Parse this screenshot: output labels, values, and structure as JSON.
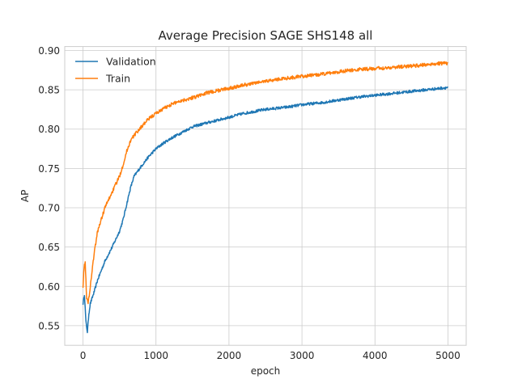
{
  "chart_data": {
    "type": "line",
    "title": "Average Precision SAGE SHS148 all",
    "xlabel": "epoch",
    "ylabel": "AP",
    "xlim": [
      -250,
      5250
    ],
    "ylim": [
      0.525,
      0.905
    ],
    "xticks": [
      0,
      1000,
      2000,
      3000,
      4000,
      5000
    ],
    "yticks": [
      0.55,
      0.6,
      0.65,
      0.7,
      0.75,
      0.8,
      0.85,
      0.9
    ],
    "xtick_labels": [
      "0",
      "1000",
      "2000",
      "3000",
      "4000",
      "5000"
    ],
    "ytick_labels": [
      "0.55",
      "0.60",
      "0.65",
      "0.70",
      "0.75",
      "0.80",
      "0.85",
      "0.90"
    ],
    "grid": true,
    "legend_position": "top-left",
    "series": [
      {
        "name": "Validation",
        "color": "#1f77b4",
        "x": [
          0,
          20,
          40,
          60,
          80,
          100,
          150,
          200,
          250,
          300,
          400,
          500,
          550,
          600,
          650,
          700,
          800,
          900,
          1000,
          1100,
          1200,
          1300,
          1400,
          1500,
          1700,
          2000,
          2200,
          2500,
          2800,
          3000,
          3300,
          3500,
          3800,
          4000,
          4300,
          4600,
          4800,
          5000
        ],
        "y": [
          0.578,
          0.59,
          0.555,
          0.542,
          0.565,
          0.578,
          0.592,
          0.608,
          0.62,
          0.632,
          0.65,
          0.67,
          0.685,
          0.705,
          0.725,
          0.74,
          0.753,
          0.765,
          0.775,
          0.782,
          0.788,
          0.793,
          0.798,
          0.803,
          0.808,
          0.815,
          0.82,
          0.825,
          0.828,
          0.831,
          0.834,
          0.837,
          0.841,
          0.843,
          0.846,
          0.849,
          0.851,
          0.853
        ]
      },
      {
        "name": "Train",
        "color": "#ff7f0e",
        "x": [
          0,
          10,
          30,
          50,
          70,
          100,
          150,
          200,
          300,
          400,
          500,
          550,
          600,
          650,
          700,
          800,
          900,
          1000,
          1100,
          1200,
          1300,
          1500,
          1700,
          2000,
          2200,
          2500,
          2800,
          3000,
          3300,
          3500,
          3800,
          4000,
          4300,
          4600,
          4800,
          5000
        ],
        "y": [
          0.6,
          0.62,
          0.632,
          0.585,
          0.578,
          0.6,
          0.64,
          0.67,
          0.7,
          0.72,
          0.74,
          0.755,
          0.772,
          0.785,
          0.792,
          0.803,
          0.813,
          0.82,
          0.826,
          0.831,
          0.835,
          0.84,
          0.846,
          0.852,
          0.856,
          0.861,
          0.865,
          0.867,
          0.87,
          0.873,
          0.876,
          0.877,
          0.879,
          0.881,
          0.883,
          0.884
        ]
      }
    ]
  }
}
